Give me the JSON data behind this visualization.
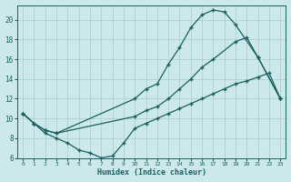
{
  "xlabel": "Humidex (Indice chaleur)",
  "bg_color": "#cce8ea",
  "grid_color": "#a8cccc",
  "line_color": "#1a6060",
  "xlim": [
    -0.5,
    23.5
  ],
  "ylim": [
    6,
    21.5
  ],
  "xticks": [
    0,
    1,
    2,
    3,
    4,
    5,
    6,
    7,
    8,
    9,
    10,
    11,
    12,
    13,
    14,
    15,
    16,
    17,
    18,
    19,
    20,
    21,
    22,
    23
  ],
  "yticks": [
    6,
    8,
    10,
    12,
    14,
    16,
    18,
    20
  ],
  "line1_x": [
    0,
    1,
    2,
    3,
    10,
    11,
    12,
    13,
    14,
    15,
    16,
    17,
    18,
    19,
    21,
    23
  ],
  "line1_y": [
    10.5,
    9.5,
    8.8,
    8.5,
    12.0,
    13.0,
    13.5,
    15.5,
    17.2,
    19.2,
    20.5,
    21.0,
    20.8,
    19.5,
    16.2,
    12.0
  ],
  "line2_x": [
    0,
    1,
    2,
    3,
    10,
    11,
    12,
    13,
    14,
    15,
    16,
    17,
    19,
    20,
    21,
    23
  ],
  "line2_y": [
    10.5,
    9.5,
    8.8,
    8.5,
    10.2,
    10.8,
    11.2,
    12.0,
    13.0,
    14.0,
    15.2,
    16.0,
    17.8,
    18.2,
    16.2,
    12.0
  ],
  "line3_x": [
    0,
    1,
    2,
    3,
    4,
    5,
    6,
    7,
    8,
    9,
    10,
    11,
    12,
    13,
    14,
    15,
    16,
    17,
    18,
    19,
    20,
    21,
    22,
    23
  ],
  "line3_y": [
    10.5,
    9.5,
    8.5,
    8.0,
    7.5,
    6.8,
    6.5,
    6.0,
    6.2,
    7.5,
    9.0,
    9.5,
    10.0,
    10.5,
    11.0,
    11.5,
    12.0,
    12.5,
    13.0,
    13.5,
    13.8,
    14.2,
    14.6,
    12.0
  ]
}
